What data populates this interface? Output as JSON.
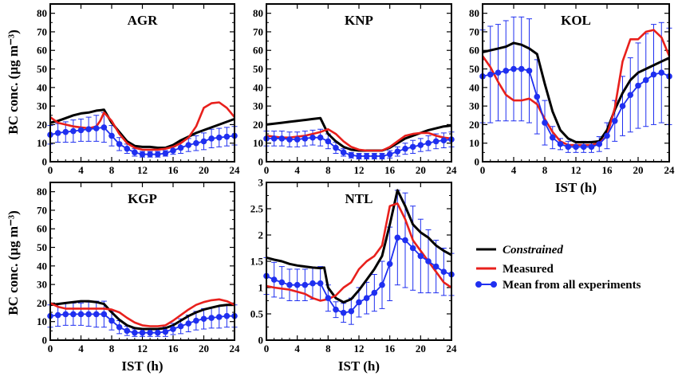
{
  "colors": {
    "constrained": "#000000",
    "measured": "#e8201c",
    "mean": "#1f2ff0"
  },
  "legend": {
    "constrained": "Constrained",
    "measured": "Measured",
    "mean": "Mean from all experiments"
  },
  "ylabel_top": "BC conc. (µg m⁻³)",
  "ylabel_bottom": "BC conc. (µg m⁻³)",
  "chart_data": [
    {
      "type": "line",
      "title": "AGR",
      "xlabel": "",
      "ylabel": "BC conc. (µg m⁻³)",
      "xlim": [
        0,
        24
      ],
      "ylim": [
        0,
        85
      ],
      "xticks": [
        0,
        4,
        8,
        12,
        16,
        20,
        24
      ],
      "yticks": [
        0,
        10,
        20,
        30,
        40,
        50,
        60,
        70,
        80
      ],
      "constrained": {
        "x": [
          0,
          1,
          2,
          3,
          4,
          5,
          6,
          7,
          8,
          9,
          10,
          11,
          12,
          13,
          14,
          15,
          16,
          17,
          18,
          19,
          20,
          21,
          22,
          23,
          24
        ],
        "y": [
          21,
          22,
          23.5,
          25,
          26,
          26.5,
          27.5,
          28,
          21,
          16,
          11,
          8.5,
          8,
          8,
          7.5,
          7.5,
          9,
          11.5,
          13.5,
          15.5,
          17,
          18.5,
          20,
          21.5,
          23
        ]
      },
      "measured": {
        "x": [
          0,
          1,
          2,
          3,
          4,
          5,
          6,
          6.5,
          7,
          8,
          9,
          10,
          11,
          12,
          13,
          14,
          15,
          16,
          17,
          18,
          19,
          20,
          21,
          22,
          23,
          24
        ],
        "y": [
          24,
          21,
          20,
          19,
          18.5,
          18,
          19,
          22,
          26.5,
          22,
          15,
          10,
          7.5,
          6.5,
          6.5,
          6.5,
          7,
          8,
          10,
          13,
          19,
          29,
          31.5,
          32,
          29,
          24
        ]
      },
      "mean": {
        "x": [
          0,
          1,
          2,
          3,
          4,
          5,
          6,
          7,
          8,
          9,
          10,
          11,
          12,
          13,
          14,
          15,
          16,
          17,
          18,
          19,
          20,
          21,
          22,
          23,
          24
        ],
        "y": [
          14.5,
          15.5,
          16,
          16.5,
          17,
          17.5,
          18,
          18.5,
          14,
          9.5,
          7,
          5,
          4,
          4,
          4,
          4.5,
          6,
          7.5,
          9,
          10,
          11,
          12.5,
          13,
          13.5,
          14
        ],
        "err": [
          5,
          5,
          5.5,
          6,
          6,
          6.5,
          7,
          8,
          5.5,
          3.5,
          2.5,
          2,
          1.5,
          1.5,
          1.5,
          1.5,
          2,
          3,
          3.5,
          4,
          4.5,
          5,
          5,
          5,
          5
        ]
      }
    },
    {
      "type": "line",
      "title": "KNP",
      "xlabel": "",
      "ylabel": "",
      "xlim": [
        0,
        24
      ],
      "ylim": [
        0,
        85
      ],
      "xticks": [
        0,
        4,
        8,
        12,
        16,
        20,
        24
      ],
      "yticks": [
        0,
        10,
        20,
        30,
        40,
        50,
        60,
        70,
        80
      ],
      "constrained": {
        "x": [
          0,
          1,
          2,
          3,
          4,
          5,
          6,
          7,
          8,
          9,
          10,
          11,
          12,
          13,
          14,
          15,
          16,
          17,
          18,
          19,
          20,
          21,
          22,
          23,
          24
        ],
        "y": [
          20,
          20.5,
          21,
          21.5,
          22,
          22.5,
          23,
          23.5,
          15,
          11,
          8,
          6.5,
          6,
          6,
          6,
          6,
          7.5,
          10,
          12.5,
          14,
          15.5,
          17,
          18,
          19,
          19.5
        ]
      },
      "measured": {
        "x": [
          0,
          1,
          2,
          3,
          4,
          5,
          6,
          7,
          8,
          9,
          10,
          11,
          12,
          13,
          14,
          15,
          16,
          17,
          18,
          19,
          20,
          21,
          22,
          23,
          24
        ],
        "y": [
          14,
          13.5,
          13,
          13,
          13.5,
          14,
          15,
          16,
          17.5,
          15,
          11,
          8,
          6.5,
          6,
          6,
          6,
          8,
          11,
          14,
          15,
          15.5,
          15.5,
          14,
          13,
          12.5
        ]
      },
      "mean": {
        "x": [
          0,
          1,
          2,
          3,
          4,
          5,
          6,
          7,
          8,
          9,
          10,
          11,
          12,
          13,
          14,
          15,
          16,
          17,
          18,
          19,
          20,
          21,
          22,
          23,
          24
        ],
        "y": [
          12.5,
          12.5,
          12.5,
          12,
          12,
          12.5,
          13,
          13,
          11,
          7.5,
          5,
          3.5,
          3,
          3,
          3,
          3,
          4,
          5.5,
          7,
          8,
          9,
          10,
          11,
          11.5,
          12
        ],
        "err": [
          4,
          4,
          4,
          4,
          4,
          4,
          4,
          4.5,
          4,
          3,
          2,
          1.5,
          1.5,
          1.5,
          1.5,
          1.5,
          2,
          2.5,
          3,
          3.5,
          3.5,
          4,
          4,
          4,
          4
        ]
      }
    },
    {
      "type": "line",
      "title": "KOL",
      "xlabel": "IST (h)",
      "ylabel": "",
      "xlim": [
        0,
        24
      ],
      "ylim": [
        0,
        85
      ],
      "xticks": [
        0,
        4,
        8,
        12,
        16,
        20,
        24
      ],
      "yticks": [
        0,
        10,
        20,
        30,
        40,
        50,
        60,
        70,
        80
      ],
      "constrained": {
        "x": [
          0,
          1,
          2,
          3,
          4,
          5,
          6,
          7,
          8,
          9,
          10,
          11,
          12,
          13,
          14,
          15,
          16,
          17,
          18,
          19,
          20,
          21,
          22,
          23,
          24
        ],
        "y": [
          59,
          60,
          61,
          62,
          64,
          63,
          61,
          58,
          42,
          27,
          17,
          12.5,
          10.5,
          10.5,
          10.5,
          11,
          17,
          28,
          37,
          44,
          48,
          50,
          52,
          54,
          56
        ]
      },
      "measured": {
        "x": [
          0,
          1,
          2,
          3,
          4,
          5,
          6,
          7,
          8,
          9,
          10,
          11,
          12,
          13,
          14,
          15,
          16,
          17,
          18,
          19,
          20,
          21,
          22,
          23,
          24
        ],
        "y": [
          57,
          51,
          43,
          36,
          33,
          33,
          34,
          31,
          23,
          16,
          11,
          9,
          9,
          9,
          9,
          10,
          14,
          29,
          54,
          66,
          66,
          70,
          71,
          67,
          57
        ]
      },
      "mean": {
        "x": [
          0,
          1,
          2,
          3,
          4,
          5,
          6,
          7,
          8,
          9,
          10,
          11,
          12,
          13,
          14,
          15,
          16,
          17,
          18,
          19,
          20,
          21,
          22,
          23,
          24
        ],
        "y": [
          46,
          47,
          48,
          49,
          50,
          50,
          49,
          35,
          21,
          13,
          9.5,
          8,
          8,
          8,
          8,
          9.5,
          14,
          22,
          30,
          36,
          41,
          44,
          47,
          48,
          46
        ],
        "err": [
          25,
          26,
          26,
          27,
          28,
          28,
          28,
          20,
          12,
          6,
          3,
          3,
          3,
          3,
          3,
          4,
          7,
          11,
          16,
          20,
          23,
          25,
          27,
          27,
          26
        ]
      }
    },
    {
      "type": "line",
      "title": "KGP",
      "xlabel": "IST (h)",
      "ylabel": "BC conc. (µg m⁻³)",
      "xlim": [
        0,
        24
      ],
      "ylim": [
        0,
        85
      ],
      "xticks": [
        0,
        4,
        8,
        12,
        16,
        20,
        24
      ],
      "yticks": [
        0,
        10,
        20,
        30,
        40,
        50,
        60,
        70,
        80
      ],
      "constrained": {
        "x": [
          0,
          1,
          2,
          3,
          4,
          5,
          6,
          7,
          8,
          9,
          10,
          11,
          12,
          13,
          14,
          15,
          16,
          17,
          18,
          19,
          20,
          21,
          22,
          23,
          24
        ],
        "y": [
          19,
          19.5,
          20,
          20.5,
          21,
          21,
          20.5,
          19.5,
          15,
          11,
          8,
          6.5,
          6,
          6,
          6,
          6.5,
          8,
          10.5,
          13,
          15,
          16.5,
          17.5,
          18.5,
          19,
          19
        ]
      },
      "measured": {
        "x": [
          0,
          1,
          2,
          3,
          4,
          5,
          6,
          7,
          8,
          9,
          10,
          11,
          12,
          13,
          14,
          15,
          16,
          17,
          18,
          19,
          20,
          21,
          22,
          23,
          24
        ],
        "y": [
          20,
          18,
          17,
          17,
          17,
          17,
          17,
          17,
          16.5,
          15,
          12,
          9.5,
          8,
          7.5,
          7.5,
          8,
          10.5,
          13.5,
          16.5,
          19,
          20.5,
          21.5,
          22,
          21,
          19
        ]
      },
      "mean": {
        "x": [
          0,
          1,
          2,
          3,
          4,
          5,
          6,
          7,
          8,
          9,
          10,
          11,
          12,
          13,
          14,
          15,
          16,
          17,
          18,
          19,
          20,
          21,
          22,
          23,
          24
        ],
        "y": [
          13,
          13.5,
          14,
          14,
          14,
          14,
          14,
          14,
          10.5,
          7,
          5,
          4,
          4,
          4,
          4,
          4.5,
          6,
          7.5,
          9,
          10.5,
          11.5,
          12,
          12.5,
          13,
          13
        ],
        "err": [
          6,
          6,
          6,
          6,
          6,
          6.5,
          7,
          7,
          5,
          3.5,
          2.5,
          2,
          2,
          2,
          2,
          2.5,
          3,
          4,
          4.5,
          5,
          5.5,
          5.5,
          6,
          6,
          6
        ]
      }
    },
    {
      "type": "line",
      "title": "NTL",
      "xlabel": "IST (h)",
      "ylabel": "",
      "xlim": [
        0,
        24
      ],
      "ylim": [
        0,
        3
      ],
      "xticks": [
        0,
        4,
        8,
        12,
        16,
        20,
        24
      ],
      "yticks": [
        0,
        0.5,
        1,
        1.5,
        2,
        2.5,
        3
      ],
      "constrained": {
        "x": [
          0,
          1,
          2,
          3,
          4,
          5,
          6,
          7,
          7.5,
          8,
          9,
          10,
          11,
          12,
          13,
          14,
          15,
          16,
          17,
          18,
          19,
          20,
          21,
          22,
          23,
          24
        ],
        "y": [
          1.57,
          1.53,
          1.5,
          1.45,
          1.42,
          1.4,
          1.38,
          1.37,
          1.38,
          1.0,
          0.8,
          0.72,
          0.78,
          0.95,
          1.15,
          1.35,
          1.6,
          2.2,
          2.85,
          2.55,
          2.2,
          2.05,
          1.95,
          1.8,
          1.7,
          1.62
        ]
      },
      "measured": {
        "x": [
          0,
          1,
          2,
          3,
          4,
          5,
          6,
          7,
          8,
          9,
          10,
          11,
          12,
          13,
          14,
          15,
          16,
          17,
          18,
          19,
          20,
          21,
          22,
          23,
          24
        ],
        "y": [
          1.03,
          1.0,
          0.98,
          0.96,
          0.92,
          0.88,
          0.8,
          0.75,
          0.78,
          0.85,
          1.0,
          1.1,
          1.35,
          1.5,
          1.6,
          1.8,
          2.55,
          2.6,
          2.3,
          1.9,
          1.7,
          1.5,
          1.3,
          1.1,
          1.0
        ]
      },
      "mean": {
        "x": [
          0,
          1,
          2,
          3,
          4,
          5,
          6,
          7,
          8,
          9,
          10,
          11,
          12,
          13,
          14,
          15,
          16,
          17,
          18,
          19,
          20,
          21,
          22,
          23,
          24
        ],
        "y": [
          1.22,
          1.15,
          1.1,
          1.05,
          1.05,
          1.05,
          1.08,
          1.08,
          0.8,
          0.58,
          0.52,
          0.55,
          0.72,
          0.8,
          0.9,
          1.05,
          1.45,
          1.95,
          1.9,
          1.75,
          1.6,
          1.5,
          1.4,
          1.3,
          1.25
        ],
        "err": [
          0.35,
          0.33,
          0.3,
          0.3,
          0.3,
          0.3,
          0.3,
          0.32,
          0.25,
          0.15,
          0.18,
          0.25,
          0.28,
          0.3,
          0.35,
          0.45,
          0.7,
          0.9,
          0.9,
          0.8,
          0.7,
          0.6,
          0.5,
          0.45,
          0.4
        ]
      }
    }
  ]
}
